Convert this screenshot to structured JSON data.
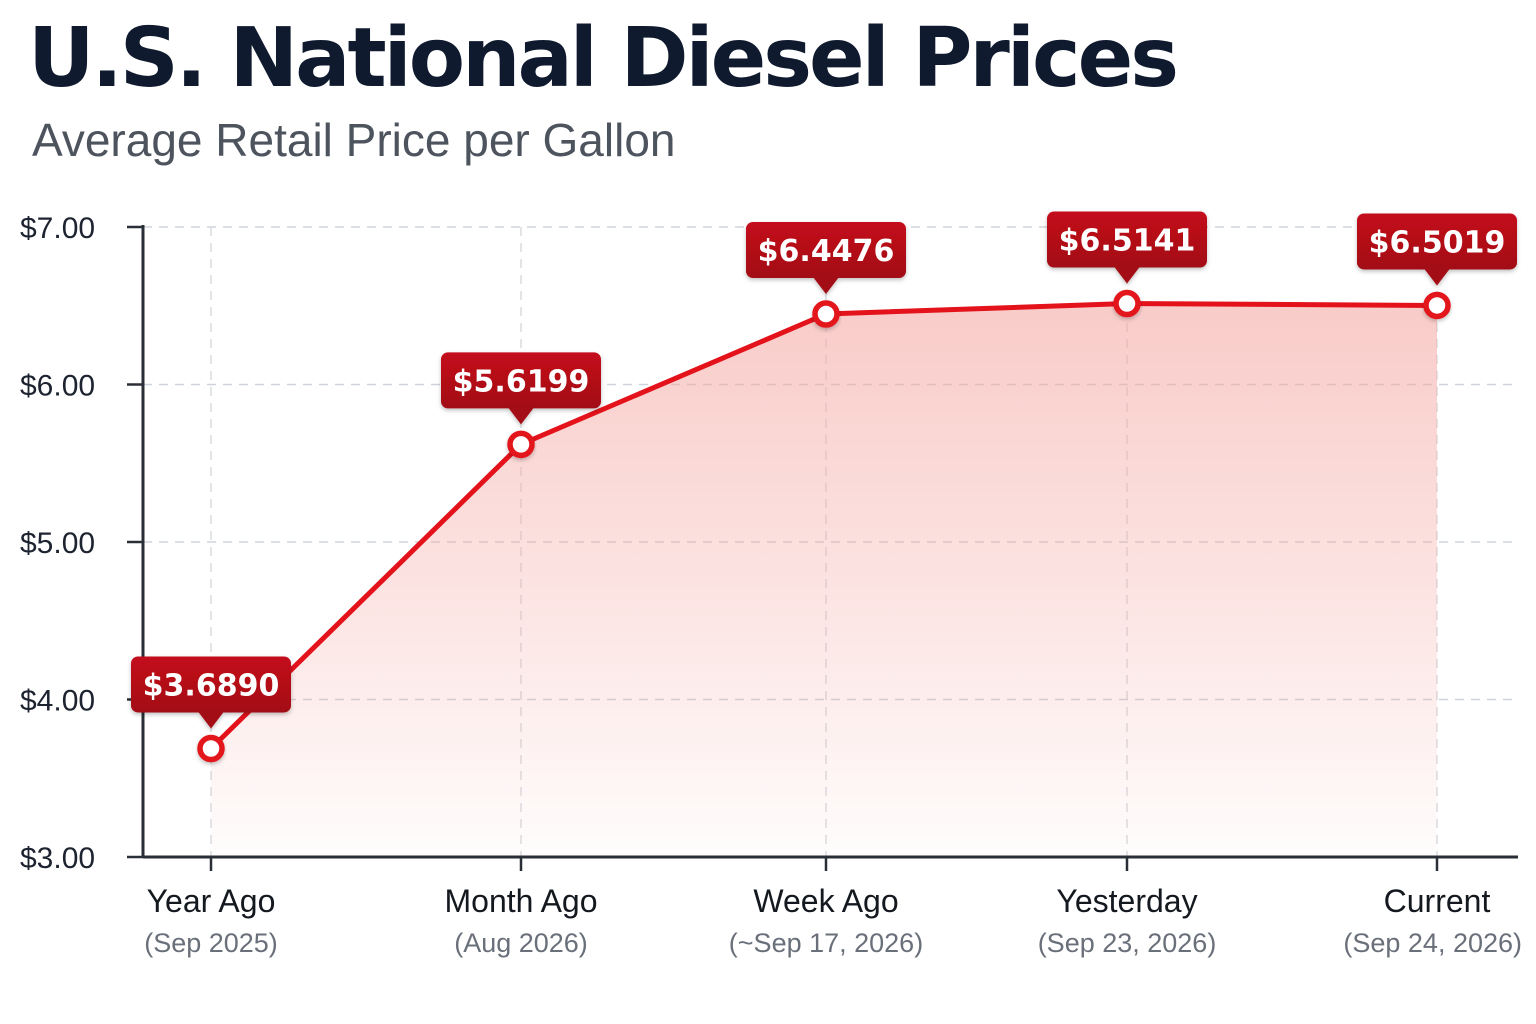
{
  "chart_data": {
    "type": "line",
    "title": "U.S. National Diesel Prices",
    "subtitle": "Average Retail Price per Gallon",
    "categories": [
      "Year Ago",
      "Month Ago",
      "Week Ago",
      "Yesterday",
      "Current"
    ],
    "category_sublabels": [
      "(Sep 2025)",
      "(Aug 2026)",
      "(~Sep 17, 2026)",
      "(Sep 23, 2026)",
      "(Sep 24, 2026)"
    ],
    "values": [
      3.689,
      5.6199,
      6.4476,
      6.5141,
      6.5019
    ],
    "data_labels": [
      "$3.6890",
      "$5.6199",
      "$6.4476",
      "$6.5141",
      "$6.5019"
    ],
    "ylim": [
      3,
      7
    ],
    "yticks": [
      3,
      4,
      5,
      6,
      7
    ],
    "ytick_labels": [
      "$3.00",
      "$4.00",
      "$5.00",
      "$6.00",
      "$7.00"
    ],
    "grid": true,
    "area_fill": true,
    "colors": {
      "line": "#e3121b",
      "label_bg": "#c4101c",
      "label_bg_dark": "#a20a12",
      "area": "#f4a9a4",
      "axis": "#2a2e36",
      "grid": "#cfd3d9"
    }
  }
}
